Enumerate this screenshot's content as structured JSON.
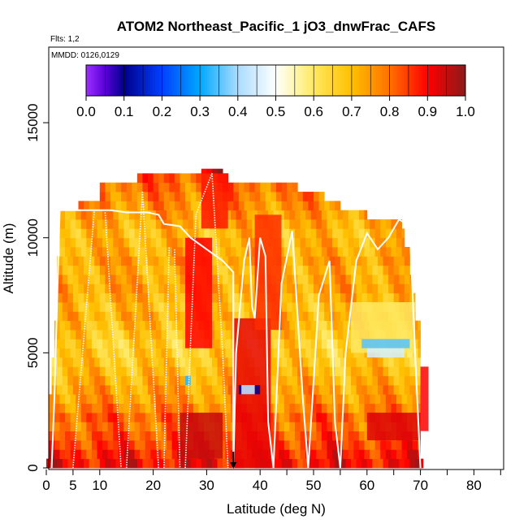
{
  "chart_data": {
    "type": "heatmap",
    "title": "ATOM2 Northeast_Pacific_1 jO3_dnwFrac_CAFS",
    "subtitle_flights": "Flts: 1,2",
    "subtitle_dates": "MMDD: 0126,0129",
    "xlabel": "Latitude (deg N)",
    "ylabel": "Altitude (m)",
    "xlim": [
      0,
      85
    ],
    "ylim": [
      0,
      17500
    ],
    "x_ticks": [
      0,
      5,
      10,
      20,
      30,
      40,
      50,
      60,
      70,
      80
    ],
    "x_minor_ticks": [
      45,
      55,
      65,
      75,
      85
    ],
    "y_ticks": [
      0,
      5000,
      10000,
      15000
    ],
    "colorbar": {
      "ticks": [
        "0.0",
        "0.1",
        "0.2",
        "0.3",
        "0.4",
        "0.5",
        "0.6",
        "0.7",
        "0.8",
        "0.9",
        "1.0"
      ],
      "range": [
        0,
        1
      ],
      "stops": [
        {
          "v": 0.0,
          "c": "#9b30ff"
        },
        {
          "v": 0.05,
          "c": "#5a00d8"
        },
        {
          "v": 0.1,
          "c": "#00008b"
        },
        {
          "v": 0.2,
          "c": "#0040ff"
        },
        {
          "v": 0.3,
          "c": "#00a8ff"
        },
        {
          "v": 0.4,
          "c": "#aadcff"
        },
        {
          "v": 0.5,
          "c": "#ffffff"
        },
        {
          "v": 0.55,
          "c": "#fff6b0"
        },
        {
          "v": 0.6,
          "c": "#ffe860"
        },
        {
          "v": 0.7,
          "c": "#ffc000"
        },
        {
          "v": 0.8,
          "c": "#ff7000"
        },
        {
          "v": 0.9,
          "c": "#ff0000"
        },
        {
          "v": 1.0,
          "c": "#8b1a1a"
        }
      ]
    },
    "heatmap_bands": [
      {
        "alt": [
          0,
          400
        ],
        "lat": [
          0,
          70.5
        ],
        "v": 0.9
      },
      {
        "alt": [
          400,
          800
        ],
        "lat": [
          0.5,
          70
        ],
        "v": 0.88
      },
      {
        "alt": [
          800,
          1200
        ],
        "lat": [
          0.5,
          70
        ],
        "v": 0.85
      },
      {
        "alt": [
          1200,
          1600
        ],
        "lat": [
          0.5,
          70
        ],
        "v": 0.83
      },
      {
        "alt": [
          1600,
          2000
        ],
        "lat": [
          0.5,
          70
        ],
        "v": 0.8
      },
      {
        "alt": [
          2000,
          2400
        ],
        "lat": [
          0.5,
          70
        ],
        "v": 0.82
      },
      {
        "alt": [
          2400,
          2800
        ],
        "lat": [
          0.5,
          70
        ],
        "v": 0.78
      },
      {
        "alt": [
          2800,
          3200
        ],
        "lat": [
          0.5,
          70
        ],
        "v": 0.75
      },
      {
        "alt": [
          3200,
          3600
        ],
        "lat": [
          1,
          70
        ],
        "v": 0.74
      },
      {
        "alt": [
          3600,
          4000
        ],
        "lat": [
          1,
          70
        ],
        "v": 0.72
      },
      {
        "alt": [
          4000,
          4400
        ],
        "lat": [
          1,
          70
        ],
        "v": 0.7
      },
      {
        "alt": [
          4400,
          4800
        ],
        "lat": [
          1,
          70
        ],
        "v": 0.68
      },
      {
        "alt": [
          4800,
          5200
        ],
        "lat": [
          1.5,
          70
        ],
        "v": 0.67
      },
      {
        "alt": [
          5200,
          5600
        ],
        "lat": [
          1.5,
          70
        ],
        "v": 0.66
      },
      {
        "alt": [
          5600,
          6000
        ],
        "lat": [
          1.5,
          70
        ],
        "v": 0.68
      },
      {
        "alt": [
          6000,
          6400
        ],
        "lat": [
          1.5,
          70
        ],
        "v": 0.7
      },
      {
        "alt": [
          6400,
          6800
        ],
        "lat": [
          2,
          69
        ],
        "v": 0.72
      },
      {
        "alt": [
          6800,
          7200
        ],
        "lat": [
          2,
          69
        ],
        "v": 0.7
      },
      {
        "alt": [
          7200,
          7600
        ],
        "lat": [
          2,
          69
        ],
        "v": 0.72
      },
      {
        "alt": [
          7600,
          8000
        ],
        "lat": [
          2,
          68.5
        ],
        "v": 0.74
      },
      {
        "alt": [
          8000,
          8400
        ],
        "lat": [
          2,
          68.5
        ],
        "v": 0.73
      },
      {
        "alt": [
          8400,
          8800
        ],
        "lat": [
          2,
          68
        ],
        "v": 0.72
      },
      {
        "alt": [
          8800,
          9200
        ],
        "lat": [
          2,
          68
        ],
        "v": 0.74
      },
      {
        "alt": [
          9200,
          9600
        ],
        "lat": [
          2.5,
          68
        ],
        "v": 0.72
      },
      {
        "alt": [
          9600,
          10000
        ],
        "lat": [
          2.5,
          67
        ],
        "v": 0.71
      },
      {
        "alt": [
          10000,
          10400
        ],
        "lat": [
          2.5,
          67
        ],
        "v": 0.7
      },
      {
        "alt": [
          10400,
          10800
        ],
        "lat": [
          2.5,
          66.5
        ],
        "v": 0.72
      },
      {
        "alt": [
          10800,
          11200
        ],
        "lat": [
          2.5,
          60
        ],
        "v": 0.74
      },
      {
        "alt": [
          11200,
          11600
        ],
        "lat": [
          6,
          55
        ],
        "v": 0.76
      },
      {
        "alt": [
          11600,
          12000
        ],
        "lat": [
          10,
          52
        ],
        "v": 0.78
      },
      {
        "alt": [
          12000,
          12400
        ],
        "lat": [
          10,
          47
        ],
        "v": 0.8
      },
      {
        "alt": [
          12400,
          12800
        ],
        "lat": [
          17,
          34
        ],
        "v": 0.82
      },
      {
        "alt": [
          12800,
          13000
        ],
        "lat": [
          29,
          33
        ],
        "v": 0.92
      }
    ],
    "heatmap_patches": [
      {
        "lat": [
          25,
          33
        ],
        "alt": [
          400,
          2400
        ],
        "v": 0.95
      },
      {
        "lat": [
          26,
          31
        ],
        "alt": [
          5200,
          10000
        ],
        "v": 0.9
      },
      {
        "lat": [
          29,
          34
        ],
        "alt": [
          10400,
          12800
        ],
        "v": 0.88
      },
      {
        "lat": [
          35,
          42
        ],
        "alt": [
          0,
          6500
        ],
        "v": 0.92
      },
      {
        "lat": [
          39,
          44
        ],
        "alt": [
          6000,
          11000
        ],
        "v": 0.86
      },
      {
        "lat": [
          60,
          70
        ],
        "alt": [
          1200,
          2400
        ],
        "v": 0.93
      },
      {
        "lat": [
          57,
          69
        ],
        "alt": [
          5000,
          7200
        ],
        "v": 0.6
      },
      {
        "lat": [
          26,
          27
        ],
        "alt": [
          3600,
          4000
        ],
        "v": 0.32
      },
      {
        "lat": [
          36,
          40
        ],
        "alt": [
          3200,
          3600
        ],
        "v": 0.1
      },
      {
        "lat": [
          36.5,
          39
        ],
        "alt": [
          3200,
          3600
        ],
        "v": 0.45
      },
      {
        "lat": [
          59,
          68
        ],
        "alt": [
          5200,
          5600
        ],
        "v": 0.35
      },
      {
        "lat": [
          60,
          67
        ],
        "alt": [
          4800,
          5200
        ],
        "v": 0.45
      },
      {
        "lat": [
          70,
          71.5
        ],
        "alt": [
          1600,
          4400
        ],
        "v": 0.9
      }
    ],
    "flight_track": [
      [
        1,
        0
      ],
      [
        1.5,
        3000
      ],
      [
        2.5,
        11200
      ],
      [
        7,
        11200
      ],
      [
        12,
        11200
      ],
      [
        15,
        11100
      ],
      [
        19,
        11100
      ],
      [
        21,
        11000
      ],
      [
        22,
        10600
      ],
      [
        25,
        10500
      ],
      [
        27,
        10000
      ],
      [
        30,
        9500
      ],
      [
        33,
        9000
      ],
      [
        35,
        8500
      ],
      [
        35,
        0
      ],
      [
        35.5,
        5000
      ],
      [
        37,
        9000
      ],
      [
        38,
        10000
      ],
      [
        38.5,
        7000
      ],
      [
        39,
        6500
      ],
      [
        40,
        10000
      ],
      [
        41,
        9200
      ],
      [
        41.5,
        2000
      ],
      [
        42.5,
        0
      ],
      [
        44,
        8000
      ],
      [
        46,
        10300
      ],
      [
        48,
        3000
      ],
      [
        49,
        0
      ],
      [
        51,
        7500
      ],
      [
        53,
        9000
      ],
      [
        54,
        2000
      ],
      [
        55,
        0
      ],
      [
        56,
        5000
      ],
      [
        58,
        9000
      ],
      [
        60,
        10200
      ],
      [
        62,
        9500
      ],
      [
        64,
        10000
      ],
      [
        66,
        10800
      ],
      [
        68,
        10500
      ],
      [
        69,
        5000
      ],
      [
        70,
        0
      ]
    ],
    "flight_profiles": [
      [
        [
          5,
          0
        ],
        [
          9,
          11200
        ]
      ],
      [
        [
          11,
          11100
        ],
        [
          14,
          0
        ]
      ],
      [
        [
          15,
          0
        ],
        [
          18,
          12000
        ]
      ],
      [
        [
          18,
          12000
        ],
        [
          21,
          0
        ]
      ],
      [
        [
          22,
          0
        ],
        [
          23,
          9600
        ]
      ],
      [
        [
          24,
          9500
        ],
        [
          25,
          0
        ]
      ],
      [
        [
          26,
          0
        ],
        [
          28,
          11000
        ]
      ],
      [
        [
          28,
          11000
        ],
        [
          31,
          12800
        ]
      ],
      [
        [
          31,
          12800
        ],
        [
          33,
          5000
        ]
      ],
      [
        [
          33,
          5000
        ],
        [
          34,
          0
        ]
      ]
    ],
    "marker": {
      "lat": 35,
      "alt": 0
    }
  }
}
